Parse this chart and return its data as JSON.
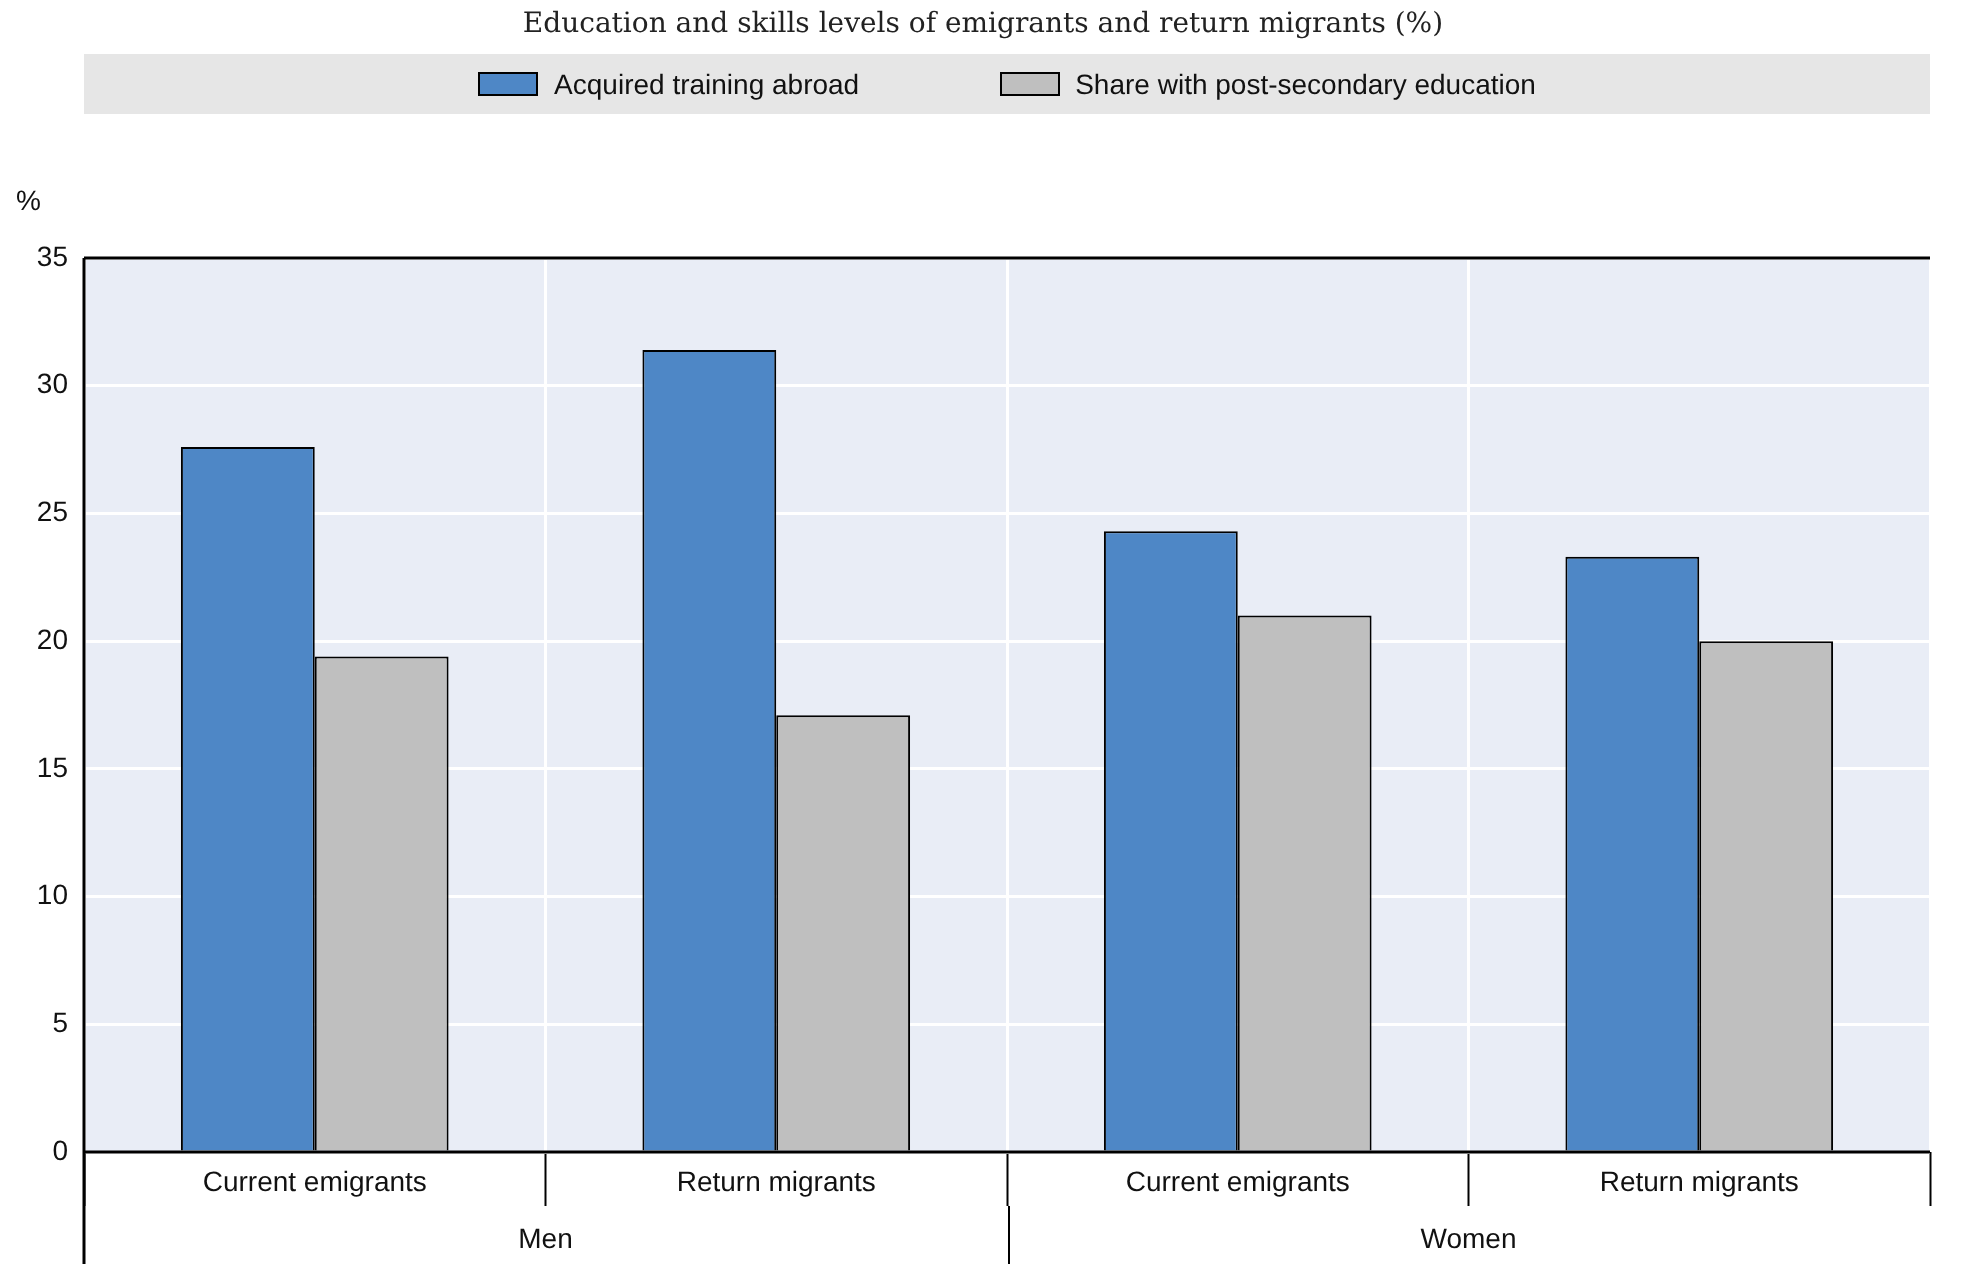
{
  "chart_data": {
    "type": "bar",
    "title": "Education and skills levels of emigrants and return migrants (%)",
    "ylabel": "%",
    "categories": [
      "Current emigrants",
      "Return migrants",
      "Current emigrants",
      "Return migrants"
    ],
    "series": [
      {
        "name": "Acquired training abroad",
        "color": "#4e87c6",
        "values": [
          27.6,
          31.4,
          24.3,
          23.3
        ]
      },
      {
        "name": "Share with post-secondary education",
        "color": "#bfbfbf",
        "values": [
          19.4,
          17.1,
          21.0,
          20.0
        ]
      }
    ],
    "annotations": [
      "Men",
      "Women"
    ],
    "ylim": [
      0,
      35
    ],
    "yticks": [
      0,
      5,
      10,
      15,
      20,
      25,
      30,
      35
    ],
    "grid": true,
    "legend": "top"
  }
}
